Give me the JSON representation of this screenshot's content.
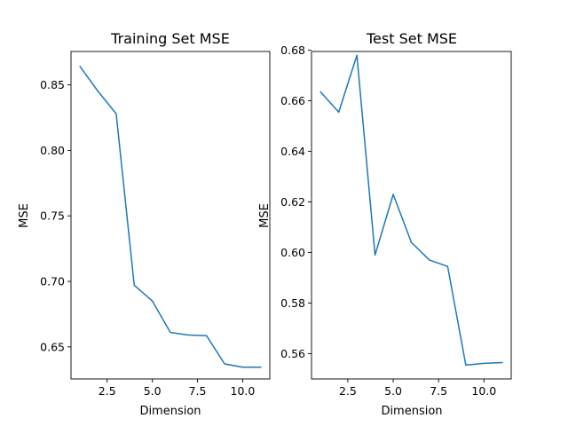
{
  "chart_data": [
    {
      "type": "line",
      "title": "Training Set MSE",
      "xlabel": "Dimension",
      "ylabel": "MSE",
      "xlim": [
        0.5,
        11.5
      ],
      "ylim": [
        0.6255,
        0.8755
      ],
      "xticks": [
        2.5,
        5.0,
        7.5,
        10.0
      ],
      "xtick_labels": [
        "2.5",
        "5.0",
        "7.5",
        "10.0"
      ],
      "yticks": [
        0.65,
        0.7,
        0.75,
        0.8,
        0.85
      ],
      "ytick_labels": [
        "0.65",
        "0.70",
        "0.75",
        "0.80",
        "0.85"
      ],
      "grid": false,
      "line_color": "#1f77b4",
      "x": [
        1,
        2,
        3,
        4,
        5,
        6,
        7,
        8,
        9,
        10,
        11
      ],
      "y": [
        0.864,
        0.845,
        0.828,
        0.697,
        0.685,
        0.661,
        0.659,
        0.6585,
        0.637,
        0.6345,
        0.6345
      ]
    },
    {
      "type": "line",
      "title": "Test Set MSE",
      "xlabel": "Dimension",
      "ylabel": "MSE",
      "xlim": [
        0.5,
        11.5
      ],
      "ylim": [
        0.55,
        0.6795
      ],
      "xticks": [
        2.5,
        5.0,
        7.5,
        10.0
      ],
      "xtick_labels": [
        "2.5",
        "5.0",
        "7.5",
        "10.0"
      ],
      "yticks": [
        0.56,
        0.58,
        0.6,
        0.62,
        0.64,
        0.66,
        0.68
      ],
      "ytick_labels": [
        "0.56",
        "0.58",
        "0.60",
        "0.62",
        "0.64",
        "0.66",
        "0.68"
      ],
      "grid": false,
      "line_color": "#1f77b4",
      "x": [
        1,
        2,
        3,
        4,
        5,
        6,
        7,
        8,
        9,
        10,
        11
      ],
      "y": [
        0.6635,
        0.6555,
        0.678,
        0.599,
        0.623,
        0.604,
        0.597,
        0.5945,
        0.5555,
        0.5562,
        0.5565
      ]
    }
  ]
}
